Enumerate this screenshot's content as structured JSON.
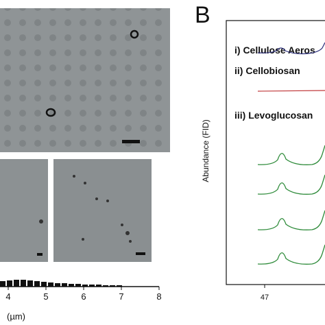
{
  "panel_b": {
    "label": "B",
    "y_axis_label": "Abundance (FID)",
    "x_tick": "47",
    "traces": [
      "i) Cellulose Aeros",
      "ii) Cellobiosan",
      "iii) Levoglucosan"
    ]
  },
  "panel_a": {
    "x_ticks": [
      "4",
      "5",
      "6",
      "7",
      "8"
    ],
    "x_axis_unit": "(µm)"
  }
}
